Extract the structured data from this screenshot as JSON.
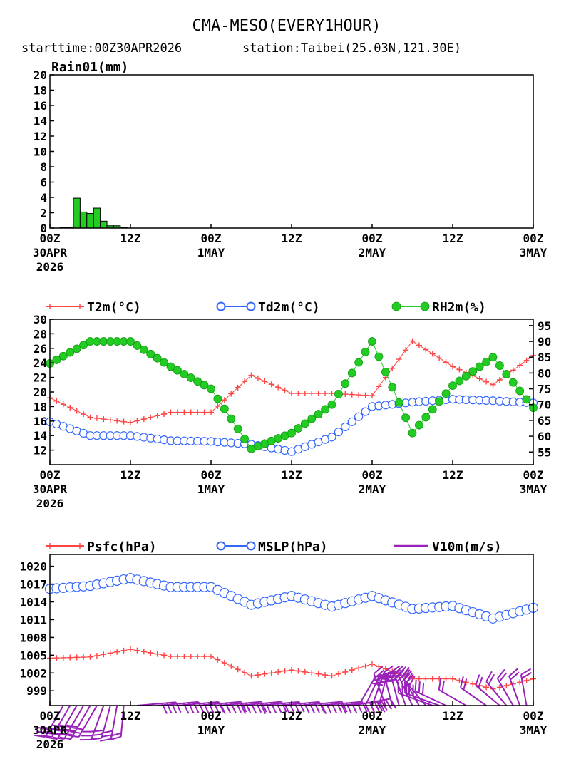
{
  "header": {
    "title": "CMA-MESO(EVERY1HOUR)",
    "starttime": "starttime:00Z30APR2026",
    "station": "station:Taibei(25.03N,121.30E)"
  },
  "x_axis": {
    "hours_range": [
      0,
      72
    ],
    "ticks": [
      {
        "hour": 0,
        "line1": "00Z",
        "line2": "30APR",
        "line3": "2026"
      },
      {
        "hour": 12,
        "line1": "12Z",
        "line2": "",
        "line3": ""
      },
      {
        "hour": 24,
        "line1": "00Z",
        "line2": "1MAY",
        "line3": ""
      },
      {
        "hour": 36,
        "line1": "12Z",
        "line2": "",
        "line3": ""
      },
      {
        "hour": 48,
        "line1": "00Z",
        "line2": "2MAY",
        "line3": ""
      },
      {
        "hour": 60,
        "line1": "12Z",
        "line2": "",
        "line3": ""
      },
      {
        "hour": 72,
        "line1": "00Z",
        "line2": "3MAY",
        "line3": ""
      }
    ]
  },
  "colors": {
    "rain": "#22cc22",
    "t2m": "#ff4444",
    "td2m": "#3366ff",
    "rh2m": "#22cc22",
    "psfc": "#ff4444",
    "mslp": "#3366ff",
    "v10m": "#9922bb"
  },
  "chart_data": [
    {
      "type": "bar",
      "title": "Rain01(mm)",
      "ylim": [
        0,
        20
      ],
      "yticks": [
        0,
        2,
        4,
        6,
        8,
        10,
        12,
        14,
        16,
        18,
        20
      ],
      "x": [
        2,
        3,
        4,
        5,
        6,
        7,
        8,
        9,
        10,
        11
      ],
      "values": [
        0.1,
        0.1,
        3.9,
        2.1,
        1.9,
        2.6,
        0.9,
        0.3,
        0.3,
        0.1
      ]
    },
    {
      "type": "line",
      "legend": [
        "T2m(°C)",
        "Td2m(°C)",
        "RH2m(%)"
      ],
      "left_ylim": [
        10,
        30
      ],
      "left_yticks": [
        12,
        14,
        16,
        18,
        20,
        22,
        24,
        26,
        28,
        30
      ],
      "right_ylim": [
        51,
        97
      ],
      "right_yticks": [
        55,
        60,
        65,
        70,
        75,
        80,
        85,
        90,
        95
      ],
      "x": [
        0,
        6,
        12,
        18,
        24,
        30,
        36,
        42,
        48,
        54,
        60,
        66,
        72
      ],
      "series": [
        {
          "name": "T2m(°C)",
          "axis": "left",
          "values": [
            19.2,
            16.5,
            15.8,
            17.2,
            17.2,
            22.3,
            19.8,
            19.8,
            19.5,
            27.0,
            23.5,
            21.0,
            25.0
          ]
        },
        {
          "name": "Td2m(°C)",
          "axis": "left",
          "values": [
            15.9,
            14.0,
            14.0,
            13.3,
            13.2,
            12.8,
            11.8,
            13.8,
            18.0,
            18.6,
            19.0,
            18.8,
            18.5
          ]
        },
        {
          "name": "RH2m(%)",
          "axis": "right",
          "values": [
            83,
            90,
            90,
            82,
            75,
            56,
            61,
            70,
            90,
            61,
            76,
            85,
            69
          ]
        }
      ]
    },
    {
      "type": "line",
      "legend": [
        "Psfc(hPa)",
        "MSLP(hPa)",
        "V10m(m/s)"
      ],
      "ylim": [
        996.5,
        1022
      ],
      "yticks": [
        999,
        1002,
        1005,
        1008,
        1011,
        1014,
        1017,
        1020
      ],
      "x": [
        0,
        6,
        12,
        18,
        24,
        30,
        36,
        42,
        48,
        54,
        60,
        66,
        72
      ],
      "series": [
        {
          "name": "Psfc(hPa)",
          "values": [
            1004.5,
            1004.7,
            1006.0,
            1004.8,
            1004.8,
            1001.5,
            1002.5,
            1001.5,
            1003.5,
            1001.0,
            1001.0,
            999.3,
            1001.0
          ]
        },
        {
          "name": "MSLP(hPa)",
          "values": [
            1016.2,
            1016.7,
            1018.0,
            1016.5,
            1016.5,
            1013.5,
            1015.0,
            1013.2,
            1015.0,
            1012.8,
            1013.3,
            1011.2,
            1013.0
          ]
        }
      ],
      "wind": {
        "name": "V10m(m/s)",
        "x": [
          2,
          3,
          4,
          5,
          6,
          7,
          8,
          9,
          10,
          11,
          13,
          16,
          19,
          22,
          25,
          28,
          31,
          34,
          37,
          40,
          43,
          45,
          46,
          47,
          48,
          49,
          50,
          51,
          52,
          53,
          54,
          55,
          56,
          57,
          58,
          59,
          62,
          65,
          67,
          68,
          69,
          70,
          71
        ],
        "dir_deg": [
          210,
          210,
          210,
          210,
          210,
          210,
          200,
          195,
          190,
          185,
          85,
          85,
          85,
          85,
          85,
          85,
          85,
          85,
          85,
          85,
          85,
          80,
          30,
          25,
          20,
          15,
          340,
          345,
          345,
          340,
          335,
          330,
          320,
          290,
          290,
          295,
          300,
          305,
          310,
          320,
          330,
          340,
          350
        ],
        "speed": [
          6,
          6,
          7,
          7,
          7,
          6,
          6,
          5,
          5,
          4,
          7,
          8,
          8,
          9,
          9,
          9,
          8,
          8,
          9,
          9,
          8,
          7,
          5,
          5,
          5,
          5,
          5,
          5,
          5,
          5,
          5,
          5,
          5,
          6,
          6,
          5,
          4,
          4,
          4,
          4,
          4,
          4,
          4
        ]
      }
    }
  ]
}
